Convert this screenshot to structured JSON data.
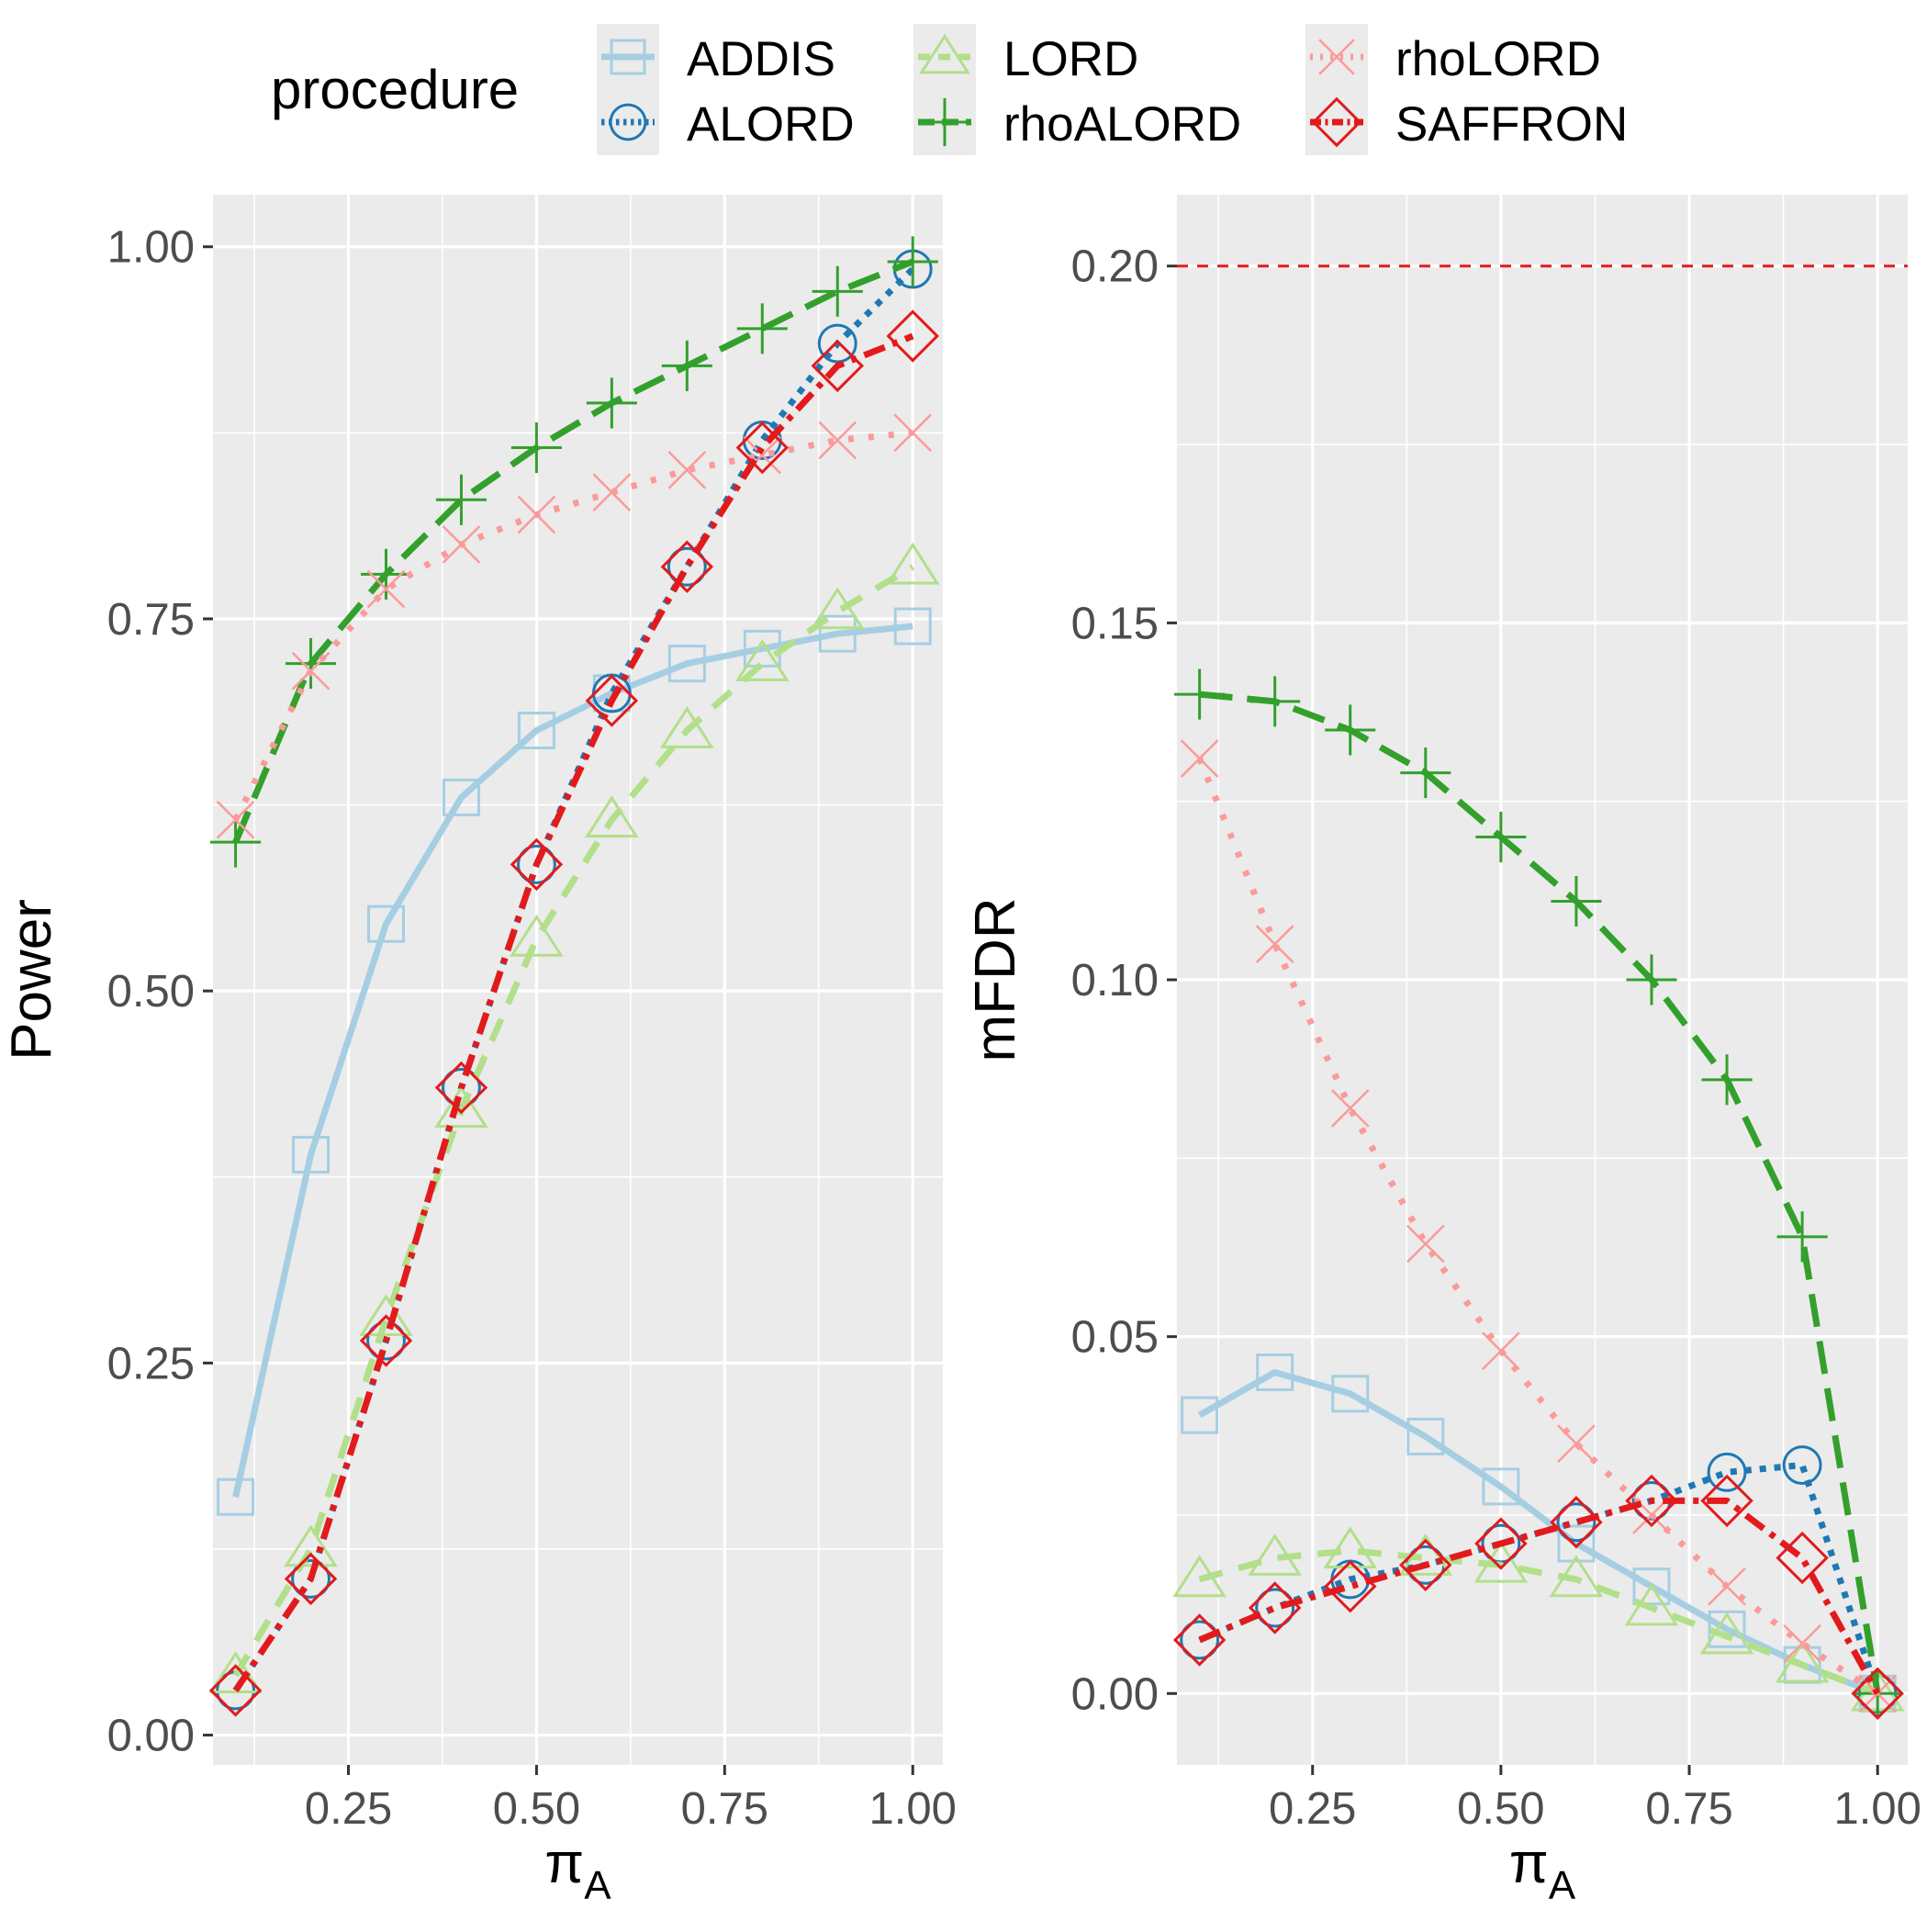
{
  "legend": {
    "title": "procedure",
    "position": "top",
    "entries": [
      {
        "name": "ADDIS",
        "color": "#a6cee3",
        "shape": "square",
        "line": "solid"
      },
      {
        "name": "ALORD",
        "color": "#1f78b4",
        "shape": "circle",
        "line": "dotted"
      },
      {
        "name": "LORD",
        "color": "#b2df8a",
        "shape": "triangle",
        "line": "dashed"
      },
      {
        "name": "rhoALORD",
        "color": "#33a02c",
        "shape": "plus",
        "line": "longdash"
      },
      {
        "name": "rhoLORD",
        "color": "#fb9a99",
        "shape": "cross",
        "line": "dotted-sparse"
      },
      {
        "name": "SAFFRON",
        "color": "#e31a1c",
        "shape": "diamond",
        "line": "dashdot"
      }
    ]
  },
  "chart_data": [
    {
      "type": "line",
      "xlabel": "π",
      "xlabel_sub": "A",
      "ylabel": "Power",
      "xlim": [
        0.07,
        1.04
      ],
      "ylim": [
        -0.02,
        1.035
      ],
      "xticks": [
        "0.25",
        "0.50",
        "0.75",
        "1.00"
      ],
      "yticks": [
        "0.00",
        "0.25",
        "0.50",
        "0.75",
        "1.00"
      ],
      "x": [
        0.1,
        0.2,
        0.3,
        0.4,
        0.5,
        0.6,
        0.7,
        0.8,
        0.9,
        1.0
      ],
      "series": [
        {
          "name": "ADDIS",
          "values": [
            0.16,
            0.39,
            0.545,
            0.63,
            0.675,
            0.7,
            0.72,
            0.73,
            0.74,
            0.745
          ]
        },
        {
          "name": "ALORD",
          "values": [
            0.03,
            0.105,
            0.265,
            0.435,
            0.585,
            0.7,
            0.785,
            0.87,
            0.935,
            0.985
          ]
        },
        {
          "name": "LORD",
          "values": [
            0.04,
            0.125,
            0.28,
            0.42,
            0.535,
            0.615,
            0.675,
            0.72,
            0.755,
            0.785
          ]
        },
        {
          "name": "rhoALORD",
          "values": [
            0.6,
            0.72,
            0.78,
            0.83,
            0.865,
            0.895,
            0.92,
            0.945,
            0.97,
            0.99
          ]
        },
        {
          "name": "rhoLORD",
          "values": [
            0.615,
            0.715,
            0.77,
            0.8,
            0.82,
            0.835,
            0.85,
            0.86,
            0.87,
            0.875
          ]
        },
        {
          "name": "SAFFRON",
          "values": [
            0.03,
            0.105,
            0.265,
            0.435,
            0.585,
            0.695,
            0.785,
            0.865,
            0.92,
            0.94
          ]
        }
      ]
    },
    {
      "type": "line",
      "xlabel": "π",
      "xlabel_sub": "A",
      "ylabel": "mFDR",
      "xlim": [
        0.07,
        1.04
      ],
      "ylim": [
        -0.01,
        0.21
      ],
      "xticks": [
        "0.25",
        "0.50",
        "0.75",
        "1.00"
      ],
      "yticks": [
        "0.00",
        "0.05",
        "0.10",
        "0.15",
        "0.20"
      ],
      "reference_line": {
        "y": 0.2,
        "color": "#e31a1c",
        "style": "dashed"
      },
      "x": [
        0.1,
        0.2,
        0.3,
        0.4,
        0.5,
        0.6,
        0.7,
        0.8,
        0.9,
        1.0
      ],
      "series": [
        {
          "name": "ADDIS",
          "values": [
            0.039,
            0.045,
            0.042,
            0.036,
            0.029,
            0.021,
            0.015,
            0.009,
            0.004,
            0.0
          ]
        },
        {
          "name": "ALORD",
          "values": [
            0.0075,
            0.012,
            0.016,
            0.018,
            0.021,
            0.024,
            0.027,
            0.031,
            0.032,
            0.0
          ]
        },
        {
          "name": "LORD",
          "values": [
            0.016,
            0.019,
            0.02,
            0.019,
            0.018,
            0.016,
            0.012,
            0.008,
            0.004,
            0.0
          ]
        },
        {
          "name": "rhoALORD",
          "values": [
            0.14,
            0.139,
            0.135,
            0.129,
            0.12,
            0.111,
            0.1,
            0.086,
            0.064,
            0.0
          ]
        },
        {
          "name": "rhoLORD",
          "values": [
            0.131,
            0.105,
            0.082,
            0.063,
            0.048,
            0.035,
            0.025,
            0.015,
            0.007,
            0.0
          ]
        },
        {
          "name": "SAFFRON",
          "values": [
            0.0075,
            0.012,
            0.015,
            0.018,
            0.021,
            0.024,
            0.027,
            0.027,
            0.019,
            0.0
          ]
        }
      ]
    }
  ]
}
